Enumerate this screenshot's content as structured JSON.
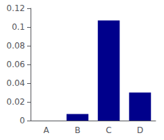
{
  "chart_data": {
    "type": "bar",
    "categories": [
      "A",
      "B",
      "C",
      "D"
    ],
    "values": [
      0.0,
      0.007,
      0.107,
      0.03
    ],
    "color": "#00008B",
    "ylim": [
      0,
      0.12
    ],
    "yticks": [
      0,
      0.02,
      0.04,
      0.06,
      0.08,
      0.1,
      0.12
    ],
    "grid": false
  }
}
